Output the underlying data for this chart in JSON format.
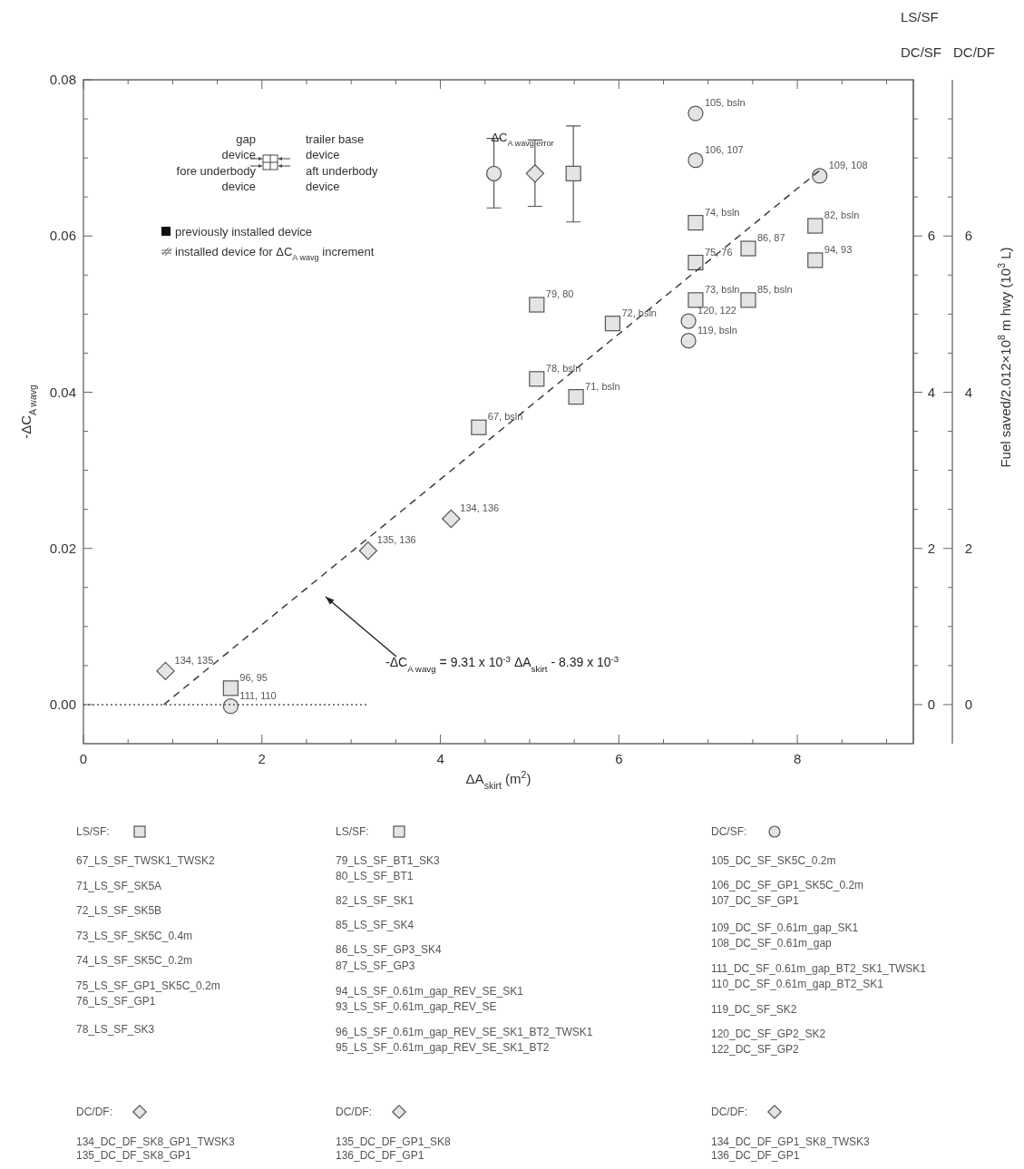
{
  "chart_data": {
    "type": "scatter",
    "xlabel": "ΔA$_{skirt}$ (m$^{2}$)",
    "ylabel": "-ΔC$_{A wavg}$",
    "y2label": "Fuel saved/2.012×10$^{8}$ m hwy  (10$^{3}$ L)",
    "xlim": [
      0,
      9.3
    ],
    "xticks": [
      0,
      {
        "value": 0.5,
        "label": null
      },
      {
        "value": 1,
        "label": null
      },
      {
        "value": 1.5,
        "label": null
      },
      2,
      {
        "value": 2.5,
        "label": null
      },
      {
        "value": 3,
        "label": null
      },
      {
        "value": 3.5,
        "label": null
      },
      4,
      {
        "value": 4.5,
        "label": null
      },
      {
        "value": 5,
        "label": null
      },
      {
        "value": 5.5,
        "label": null
      },
      6,
      {
        "value": 6.5,
        "label": null
      },
      {
        "value": 7,
        "label": null
      },
      {
        "value": 7.5,
        "label": null
      },
      8,
      {
        "value": 8.5,
        "label": null
      },
      {
        "value": 9,
        "label": null
      }
    ],
    "ylim": [
      -0.005,
      0.08
    ],
    "yticks": [
      {
        "value": 0,
        "label": "0.00"
      },
      {
        "value": 0.005,
        "label": null
      },
      {
        "value": 0.01,
        "label": null
      },
      {
        "value": 0.015,
        "label": null
      },
      {
        "value": 0.02,
        "label": "0.02"
      },
      {
        "value": 0.025,
        "label": null
      },
      {
        "value": 0.03,
        "label": null
      },
      {
        "value": 0.035,
        "label": null
      },
      {
        "value": 0.04,
        "label": "0.04"
      },
      {
        "value": 0.045,
        "label": null
      },
      {
        "value": 0.05,
        "label": null
      },
      {
        "value": 0.055,
        "label": null
      },
      {
        "value": 0.06,
        "label": "0.06"
      },
      {
        "value": 0.065,
        "label": null
      },
      {
        "value": 0.07,
        "label": null
      },
      {
        "value": 0.075,
        "label": null
      },
      {
        "value": 0.08,
        "label": "0.08"
      }
    ],
    "y2lim": [
      -0.5,
      8
    ],
    "y2ticks": [
      0,
      {
        "value": 0.5,
        "label": null
      },
      {
        "value": 1,
        "label": null
      },
      {
        "value": 1.5,
        "label": null
      },
      2,
      {
        "value": 2.5,
        "label": null
      },
      {
        "value": 3,
        "label": null
      },
      {
        "value": 3.5,
        "label": null
      },
      4,
      {
        "value": 4.5,
        "label": null
      },
      {
        "value": 5,
        "label": null
      },
      {
        "value": 5.5,
        "label": null
      },
      6,
      {
        "value": 6.5,
        "label": null
      },
      {
        "value": 7,
        "label": null
      },
      {
        "value": 7.5,
        "label": null
      }
    ],
    "y3lim": [
      -0.5,
      8
    ],
    "y3ticks": [
      0,
      {
        "value": 0.5,
        "label": null
      },
      {
        "value": 1,
        "label": null
      },
      {
        "value": 1.5,
        "label": null
      },
      2,
      {
        "value": 2.5,
        "label": null
      },
      {
        "value": 3,
        "label": null
      },
      {
        "value": 3.5,
        "label": null
      },
      4,
      {
        "value": 4.5,
        "label": null
      },
      {
        "value": 5,
        "label": null
      },
      {
        "value": 5.5,
        "label": null
      },
      6,
      {
        "value": 6.5,
        "label": null
      },
      {
        "value": 7,
        "label": null
      },
      {
        "value": 7.5,
        "label": null
      }
    ],
    "grid": false,
    "series": [
      {
        "marker": "square",
        "color": "#555555",
        "x": [
          4.43,
          5.52,
          5.93,
          6.86,
          6.86,
          6.86,
          5.08,
          5.08,
          8.2,
          7.45,
          7.45,
          8.2,
          1.65
        ],
        "values": [
          0.0355,
          0.0394,
          0.0488,
          0.0518,
          0.0617,
          0.0566,
          0.0417,
          0.0512,
          0.0613,
          0.0518,
          0.0584,
          0.0569,
          0.0021
        ]
      },
      {
        "marker": "circle",
        "color": "#555555",
        "x": [
          6.86,
          6.86,
          8.25,
          1.65,
          6.78,
          6.78
        ],
        "values": [
          0.0757,
          0.0697,
          0.0677,
          -0.0002,
          0.0466,
          0.0491
        ]
      },
      {
        "marker": "diamond",
        "color": "#555555",
        "x": [
          0.92,
          3.19,
          4.12
        ],
        "values": [
          0.0043,
          0.0197,
          0.0238
        ]
      },
      {
        "marker": "circle",
        "color": "#555555",
        "x": [
          4.6
        ],
        "values": [
          0.068
        ],
        "errors": [
          [
            0.0636,
            0.0725
          ]
        ]
      },
      {
        "marker": "diamond",
        "color": "#555555",
        "x": [
          5.06
        ],
        "values": [
          0.068
        ],
        "errors": [
          [
            0.0638,
            0.0723
          ]
        ]
      },
      {
        "marker": "square",
        "color": "#555555",
        "x": [
          5.49
        ],
        "values": [
          0.068
        ],
        "errors": [
          [
            0.0618,
            0.0741
          ]
        ]
      },
      {
        "type": "line",
        "line_style": "dashed",
        "color": "#333333",
        "x": [
          0.9,
          8.25
        ],
        "values": [
          0.0,
          0.0684
        ]
      },
      {
        "type": "line",
        "line_style": "dotted",
        "color": "#555555",
        "x": [
          0,
          3.2
        ],
        "values": [
          0,
          0
        ]
      }
    ],
    "annotations": [
      "LS/SF",
      "DC/SF",
      "DC/DF",
      "ΔC$_{A wavg error}$",
      "gap device",
      "fore underbody device",
      "trailer base device",
      "aft underbody device",
      "previously installed device",
      "installed device for ΔC$_{A wavg}$ increment",
      "-ΔC$_{A wavg}$ =  9.31 x 10$^{-3}$ ΔA$_{skirt}$ - 8.39 x 10$^{-3}$",
      "LS/SF:",
      "67_LS_SF_TWSK1_TWSK2",
      "71_LS_SF_SK5A",
      "72_LS_SF_SK5B",
      "73_LS_SF_SK5C_0.4m",
      "74_LS_SF_SK5C_0.2m",
      "75_LS_SF_GP1_SK5C_0.2m",
      "76_LS_SF_GP1",
      "78_LS_SF_SK3",
      "LS/SF:",
      "79_LS_SF_BT1_SK3",
      "80_LS_SF_BT1",
      "82_LS_SF_SK1",
      "85_LS_SF_SK4",
      "86_LS_SF_GP3_SK4",
      "87_LS_SF_GP3",
      "94_LS_SF_0.61m_gap_REV_SE_SK1",
      "93_LS_SF_0.61m_gap_REV_SE",
      "96_LS_SF_0.61m_gap_REV_SE_SK1_BT2_TWSK1",
      "95_LS_SF_0.61m_gap_REV_SE_SK1_BT2",
      "DC/SF:",
      "105_DC_SF_SK5C_0.2m",
      "106_DC_SF_GP1_SK5C_0.2m",
      "107_DC_SF_GP1",
      "109_DC_SF_0.61m_gap_SK1",
      "108_DC_SF_0.61m_gap",
      "111_DC_SF_0.61m_gap_BT2_SK1_TWSK1",
      "110_DC_SF_0.61m_gap_BT2_SK1",
      "119_DC_SF_SK2",
      "120_DC_SF_GP2_SK2",
      "122_DC_SF_GP2",
      "DC/DF:",
      "134_DC_DF_SK8_GP1_TWSK3",
      "135_DC_DF_SK8_GP1",
      "DC/DF:",
      "135_DC_DF_GP1_SK8",
      "136_DC_DF_GP1",
      "DC/DF:",
      "134_DC_DF_GP1_SK8_TWSK3",
      "136_DC_DF_GP1",
      {
        "text": "67, bsln",
        "x": 4.43,
        "y": 0.0355
      },
      {
        "text": "71, bsln",
        "x": 5.52,
        "y": 0.0394
      },
      {
        "text": "72, bsln",
        "x": 5.93,
        "y": 0.0488
      },
      {
        "text": "73, bsln",
        "x": 6.86,
        "y": 0.0518
      },
      {
        "text": "74, bsln",
        "x": 6.86,
        "y": 0.0617
      },
      {
        "text": "75, 76",
        "x": 6.86,
        "y": 0.0566
      },
      {
        "text": "78, bsln",
        "x": 5.08,
        "y": 0.0417
      },
      {
        "text": "79, 80",
        "x": 5.08,
        "y": 0.0512
      },
      {
        "text": "82, bsln",
        "x": 8.2,
        "y": 0.0613
      },
      {
        "text": "85, bsln",
        "x": 7.45,
        "y": 0.0518
      },
      {
        "text": "86, 87",
        "x": 7.45,
        "y": 0.0584
      },
      {
        "text": "94, 93",
        "x": 8.2,
        "y": 0.0569
      },
      {
        "text": "96, 95",
        "x": 1.65,
        "y": 0.0021
      },
      {
        "text": "105, bsln",
        "x": 6.86,
        "y": 0.0757
      },
      {
        "text": "106, 107",
        "x": 6.86,
        "y": 0.0697
      },
      {
        "text": "109, 108",
        "x": 8.25,
        "y": 0.0677
      },
      {
        "text": "111, 110",
        "x": 1.65,
        "y": -0.0002
      },
      {
        "text": "119, bsln",
        "x": 6.78,
        "y": 0.0466
      },
      {
        "text": "120, 122",
        "x": 6.78,
        "y": 0.0491
      },
      {
        "text": "134, 135",
        "x": 0.92,
        "y": 0.0043
      },
      {
        "text": "135, 136",
        "x": 3.19,
        "y": 0.0197
      },
      {
        "text": "134, 136",
        "x": 4.12,
        "y": 0.0238
      }
    ]
  }
}
